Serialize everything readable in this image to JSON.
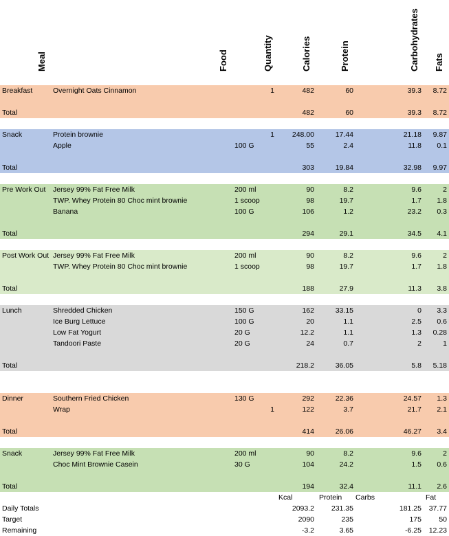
{
  "headers": {
    "meal": "Meal",
    "food": "Food",
    "quantity": "Quantity",
    "calories": "Calories",
    "protein": "Protein",
    "carbohydrates": "Carbohydrates",
    "fats": "Fats"
  },
  "colors": {
    "orange": "#F8CBAD",
    "blue": "#B4C6E7",
    "green": "#C6E0B4",
    "light_green": "#D9EAC9",
    "gray": "#D9D9D9"
  },
  "sections": [
    {
      "name": "breakfast",
      "color": "orange",
      "rows": [
        {
          "meal": "Breakfast",
          "food": "Overnight Oats Cinnamon",
          "qty_text": "",
          "qty_num": "1",
          "cal": "482",
          "pro": "60",
          "carb": "39.3",
          "fat": "8.72"
        },
        {
          "meal": "",
          "food": "",
          "qty_text": "",
          "qty_num": "",
          "cal": "",
          "pro": "",
          "carb": "",
          "fat": ""
        },
        {
          "meal": "Total",
          "food": "",
          "qty_text": "",
          "qty_num": "",
          "cal": "482",
          "pro": "60",
          "carb": "39.3",
          "fat": "8.72"
        }
      ]
    },
    {
      "name": "snack",
      "color": "blue",
      "rows": [
        {
          "meal": "Snack",
          "food": "Protein brownie",
          "qty_text": "",
          "qty_num": "1",
          "cal": "248.00",
          "pro": "17.44",
          "carb": "21.18",
          "fat": "9.87"
        },
        {
          "meal": "",
          "food": "Apple",
          "qty_text": "100 G",
          "qty_num": "",
          "cal": "55",
          "pro": "2.4",
          "carb": "11.8",
          "fat": "0.1"
        },
        {
          "meal": "",
          "food": "",
          "qty_text": "",
          "qty_num": "",
          "cal": "",
          "pro": "",
          "carb": "",
          "fat": ""
        },
        {
          "meal": "Total",
          "food": "",
          "qty_text": "",
          "qty_num": "",
          "cal": "303",
          "pro": "19.84",
          "carb": "32.98",
          "fat": "9.97"
        }
      ]
    },
    {
      "name": "pre-work-out",
      "color": "green",
      "rows": [
        {
          "meal": "Pre Work Out",
          "food": "Jersey 99% Fat Free Milk",
          "qty_text": "200 ml",
          "qty_num": "",
          "cal": "90",
          "pro": "8.2",
          "carb": "9.6",
          "fat": "2"
        },
        {
          "meal": "",
          "food": "TWP. Whey Protein 80 Choc mint brownie",
          "qty_text": "1 scoop",
          "qty_num": "",
          "cal": "98",
          "pro": "19.7",
          "carb": "1.7",
          "fat": "1.8"
        },
        {
          "meal": "",
          "food": "Banana",
          "qty_text": "100 G",
          "qty_num": "",
          "cal": "106",
          "pro": "1.2",
          "carb": "23.2",
          "fat": "0.3"
        },
        {
          "meal": "",
          "food": "",
          "qty_text": "",
          "qty_num": "",
          "cal": "",
          "pro": "",
          "carb": "",
          "fat": ""
        },
        {
          "meal": "Total",
          "food": "",
          "qty_text": "",
          "qty_num": "",
          "cal": "294",
          "pro": "29.1",
          "carb": "34.5",
          "fat": "4.1"
        }
      ]
    },
    {
      "name": "post-work-out",
      "color": "light_green",
      "rows": [
        {
          "meal": "Post Work Out",
          "food": "Jersey 99% Fat Free Milk",
          "qty_text": "200 ml",
          "qty_num": "",
          "cal": "90",
          "pro": "8.2",
          "carb": "9.6",
          "fat": "2"
        },
        {
          "meal": "",
          "food": "TWP. Whey Protein 80 Choc mint brownie",
          "qty_text": "1 scoop",
          "qty_num": "",
          "cal": "98",
          "pro": "19.7",
          "carb": "1.7",
          "fat": "1.8"
        },
        {
          "meal": "",
          "food": "",
          "qty_text": "",
          "qty_num": "",
          "cal": "",
          "pro": "",
          "carb": "",
          "fat": ""
        },
        {
          "meal": "Total",
          "food": "",
          "qty_text": "",
          "qty_num": "",
          "cal": "188",
          "pro": "27.9",
          "carb": "11.3",
          "fat": "3.8"
        }
      ]
    },
    {
      "name": "lunch",
      "color": "gray",
      "rows": [
        {
          "meal": "Lunch",
          "food": "Shredded Chicken",
          "qty_text": "150 G",
          "qty_num": "",
          "cal": "162",
          "pro": "33.15",
          "carb": "0",
          "fat": "3.3"
        },
        {
          "meal": "",
          "food": "Ice Burg Lettuce",
          "qty_text": "100 G",
          "qty_num": "",
          "cal": "20",
          "pro": "1.1",
          "carb": "2.5",
          "fat": "0.6"
        },
        {
          "meal": "",
          "food": "Low Fat Yogurt",
          "qty_text": "20 G",
          "qty_num": "",
          "cal": "12.2",
          "pro": "1.1",
          "carb": "1.3",
          "fat": "0.28"
        },
        {
          "meal": "",
          "food": "Tandoori Paste",
          "qty_text": "20 G",
          "qty_num": "",
          "cal": "24",
          "pro": "0.7",
          "carb": "2",
          "fat": "1"
        },
        {
          "meal": "",
          "food": "",
          "qty_text": "",
          "qty_num": "",
          "cal": "",
          "pro": "",
          "carb": "",
          "fat": ""
        },
        {
          "meal": "Total",
          "food": "",
          "qty_text": "",
          "qty_num": "",
          "cal": "218.2",
          "pro": "36.05",
          "carb": "5.8",
          "fat": "5.18"
        }
      ]
    },
    {
      "name": "dinner",
      "color": "orange",
      "rows": [
        {
          "meal": "Dinner",
          "food": "Southern Fried Chicken",
          "qty_text": "130 G",
          "qty_num": "",
          "cal": "292",
          "pro": "22.36",
          "carb": "24.57",
          "fat": "1.3"
        },
        {
          "meal": "",
          "food": "Wrap",
          "qty_text": "",
          "qty_num": "1",
          "cal": "122",
          "pro": "3.7",
          "carb": "21.7",
          "fat": "2.1"
        },
        {
          "meal": "",
          "food": "",
          "qty_text": "",
          "qty_num": "",
          "cal": "",
          "pro": "",
          "carb": "",
          "fat": ""
        },
        {
          "meal": "Total",
          "food": "",
          "qty_text": "",
          "qty_num": "",
          "cal": "414",
          "pro": "26.06",
          "carb": "46.27",
          "fat": "3.4"
        }
      ]
    },
    {
      "name": "snack-2",
      "color": "green",
      "rows": [
        {
          "meal": "Snack",
          "food": "Jersey 99% Fat Free Milk",
          "qty_text": "200 ml",
          "qty_num": "",
          "cal": "90",
          "pro": "8.2",
          "carb": "9.6",
          "fat": "2"
        },
        {
          "meal": "",
          "food": "Choc Mint Brownie Casein",
          "qty_text": "30 G",
          "qty_num": "",
          "cal": "104",
          "pro": "24.2",
          "carb": "1.5",
          "fat": "0.6"
        },
        {
          "meal": "",
          "food": "",
          "qty_text": "",
          "qty_num": "",
          "cal": "",
          "pro": "",
          "carb": "",
          "fat": ""
        },
        {
          "meal": "Total",
          "food": "",
          "qty_text": "",
          "qty_num": "",
          "cal": "194",
          "pro": "32.4",
          "carb": "11.1",
          "fat": "2.6"
        }
      ]
    }
  ],
  "summary": {
    "headers": {
      "kcal": "Kcal",
      "protein": "Protein",
      "carbs": "Carbs",
      "fat": "Fat"
    },
    "rows": [
      {
        "label": "Daily Totals",
        "cal": "2093.2",
        "pro": "231.35",
        "carb": "181.25",
        "fat": "37.77"
      },
      {
        "label": "Target",
        "cal": "2090",
        "pro": "235",
        "carb": "175",
        "fat": "50"
      },
      {
        "label": "Remaining",
        "cal": "-3.2",
        "pro": "3.65",
        "carb": "-6.25",
        "fat": "12.23"
      }
    ]
  }
}
